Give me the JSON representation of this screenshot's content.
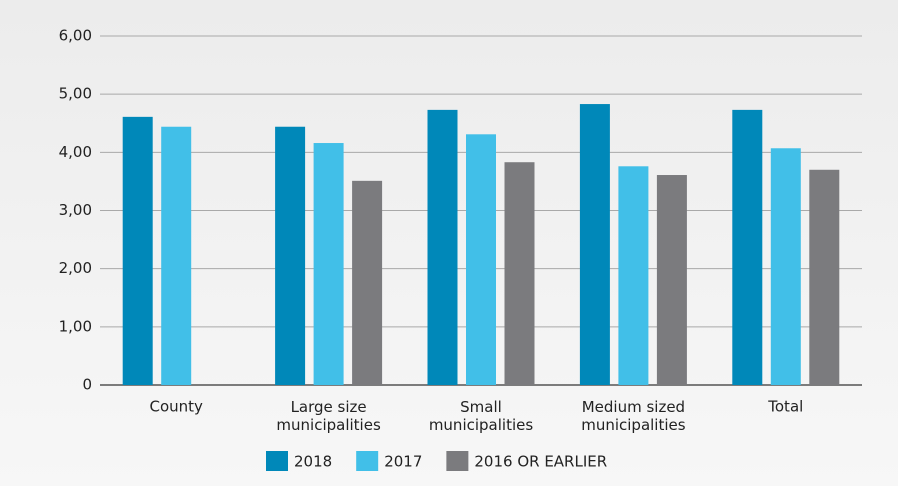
{
  "chart_data": {
    "type": "bar",
    "categories": [
      "County",
      "Large size\nmunicipalities",
      "Small\nmunicipalities",
      "Medium sized\nmunicipalities",
      "Total"
    ],
    "series": [
      {
        "name": "2018",
        "color": "#0088b9",
        "values": [
          4.61,
          4.44,
          4.73,
          4.83,
          4.73
        ]
      },
      {
        "name": "2017",
        "color": "#41bfe8",
        "values": [
          4.44,
          4.16,
          4.31,
          3.76,
          4.07
        ]
      },
      {
        "name": "2016 OR EARLIER",
        "color": "#7b7b7e",
        "values": [
          null,
          3.51,
          3.83,
          3.61,
          3.7
        ]
      }
    ],
    "ylim": [
      0,
      6
    ],
    "yticks": [
      0,
      {
        "value": 1,
        "label": "1,00"
      },
      {
        "value": 2,
        "label": "2,00"
      },
      {
        "value": 3,
        "label": "3,00"
      },
      {
        "value": 4,
        "label": "4,00"
      },
      {
        "value": 5,
        "label": "5,00"
      },
      {
        "value": 6,
        "label": "6,00"
      }
    ],
    "grid": true,
    "legend": "bottom"
  }
}
